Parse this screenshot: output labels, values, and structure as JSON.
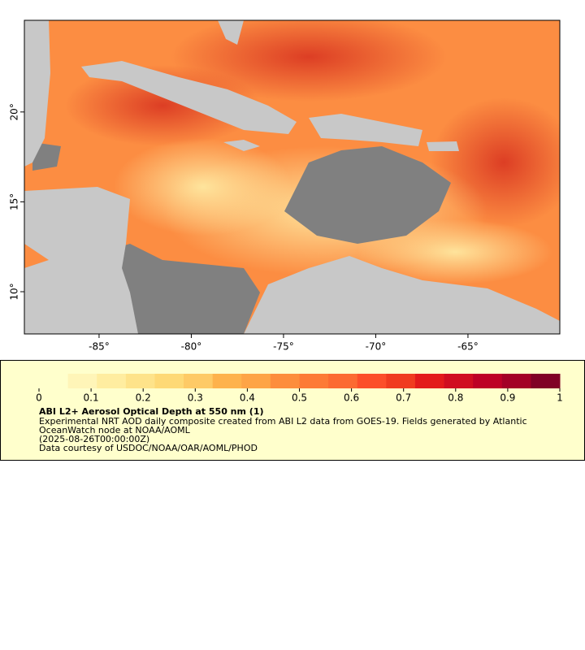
{
  "map": {
    "lon_range": [
      -89.05,
      -60.02
    ],
    "lat_range": [
      7.65,
      25.1
    ],
    "xticks": [
      {
        "value": -85,
        "label": "-85°"
      },
      {
        "value": -80,
        "label": "-80°"
      },
      {
        "value": -75,
        "label": "-75°"
      },
      {
        "value": -70,
        "label": "-70°"
      },
      {
        "value": -65,
        "label": "-65°"
      }
    ],
    "yticks": [
      {
        "value": 10,
        "label": "10°"
      },
      {
        "value": 15,
        "label": "15°"
      },
      {
        "value": 20,
        "label": "20°"
      }
    ]
  },
  "colorbar": {
    "range": [
      0,
      1
    ],
    "ticks": [
      0,
      0.1,
      0.2,
      0.3,
      0.4,
      0.5,
      0.6,
      0.7,
      0.8,
      0.9,
      1
    ],
    "colors": [
      "#ffffcc",
      "#fff5b8",
      "#ffeda0",
      "#fee38a",
      "#fed976",
      "#feca66",
      "#feb24c",
      "#fea446",
      "#fd8d3c",
      "#fd7a36",
      "#fc6a32",
      "#fc4e2a",
      "#f03b20",
      "#e31a1c",
      "#d00d21",
      "#bd0026",
      "#a30026",
      "#800026"
    ]
  },
  "legend": {
    "title": "ABI L2+ Aerosol Optical Depth at 550 nm (1)",
    "lines": [
      "Experimental NRT AOD daily composite created from ABI L2 data from GOES-19. Fields generated by Atlantic",
      "OceanWatch node at NOAA/AOML",
      "(2025-08-26T00:00:00Z)",
      "Data courtesy of USDOC/NOAA/OAR/AOML/PHOD"
    ]
  }
}
